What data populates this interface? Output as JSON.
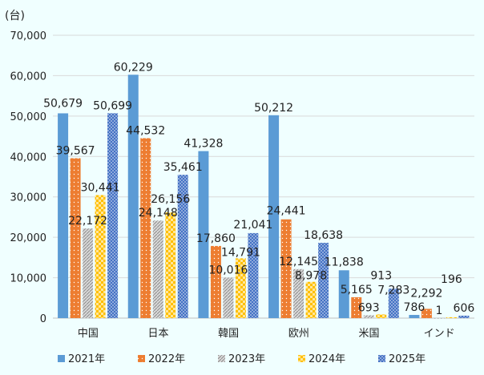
{
  "chart_data": {
    "type": "bar",
    "unit_label": "(台)",
    "categories": [
      "中国",
      "日本",
      "韓国",
      "欧州",
      "米国",
      "インド"
    ],
    "ylim": [
      0,
      70000
    ],
    "yticks": [
      0,
      10000,
      20000,
      30000,
      40000,
      50000,
      60000,
      70000
    ],
    "ytick_labels": [
      "0",
      "10,000",
      "20,000",
      "30,000",
      "40,000",
      "50,000",
      "60,000",
      "70,000"
    ],
    "grid": true,
    "legend_position": "bottom",
    "series": [
      {
        "name": "2021年",
        "color": "#5b9bd5",
        "pattern": "solid",
        "values": [
          50679,
          60229,
          41328,
          50212,
          11838,
          786
        ]
      },
      {
        "name": "2022年",
        "color": "#ed7d31",
        "pattern": "dots",
        "values": [
          39567,
          44532,
          17860,
          24441,
          5165,
          2292
        ]
      },
      {
        "name": "2023年",
        "color": "#a5a5a5",
        "pattern": "diagonal-hatch",
        "values": [
          22172,
          24148,
          10016,
          12145,
          693,
          1
        ]
      },
      {
        "name": "2024年",
        "color": "#ffc000",
        "pattern": "checker",
        "values": [
          30441,
          26156,
          14791,
          8978,
          913,
          196
        ]
      },
      {
        "name": "2025年",
        "color": "#4472c4",
        "pattern": "fine-checker",
        "values": [
          50699,
          35461,
          21041,
          18638,
          7283,
          606
        ]
      }
    ]
  }
}
